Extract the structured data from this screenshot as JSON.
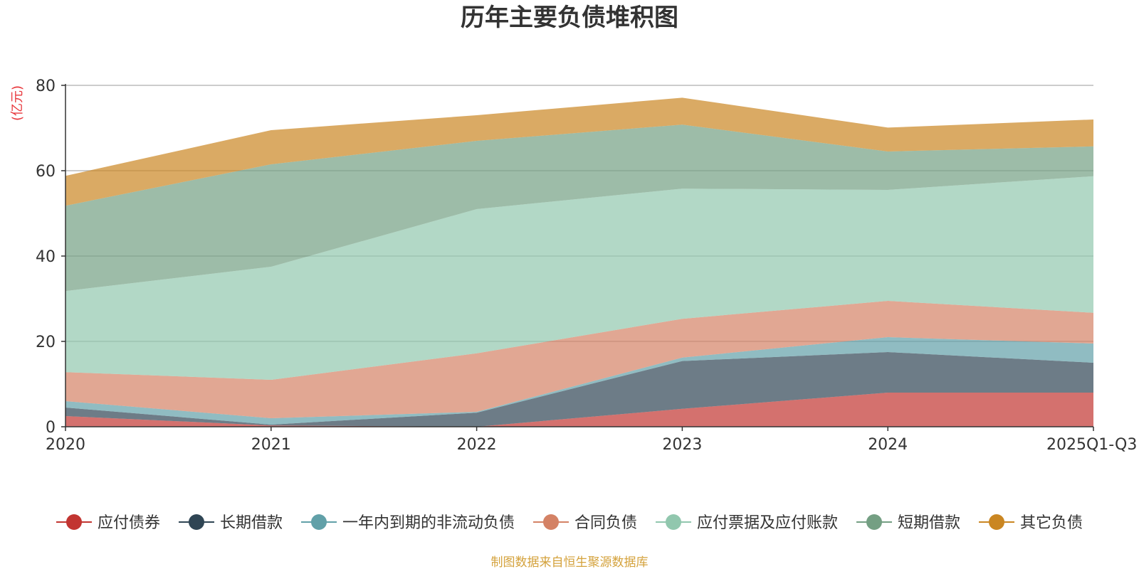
{
  "chart_data": {
    "type": "area",
    "stacked": true,
    "title": "历年主要负债堆积图",
    "ylabel": "(亿元)",
    "ylim": [
      0,
      80
    ],
    "yticks": [
      "0",
      "20",
      "40",
      "60",
      "80"
    ],
    "categories": [
      "2020",
      "2021",
      "2022",
      "2023",
      "2024",
      "2025Q1-Q3"
    ],
    "series": [
      {
        "name": "应付债券",
        "color": "#c23531",
        "values": [
          2.5,
          0.3,
          0,
          4.2,
          8.0,
          8.0
        ]
      },
      {
        "name": "长期借款",
        "color": "#2f4554",
        "values": [
          2.0,
          0.2,
          3.3,
          11.2,
          9.5,
          7.0
        ]
      },
      {
        "name": "一年内到期的非流动负债",
        "color": "#61a0a8",
        "values": [
          1.5,
          1.5,
          0.2,
          0.8,
          3.5,
          4.5
        ]
      },
      {
        "name": "合同负债",
        "color": "#d48265",
        "values": [
          6.8,
          9.0,
          13.7,
          9.1,
          8.5,
          7.2
        ]
      },
      {
        "name": "应付票据及应付账款",
        "color": "#91c7ae",
        "values": [
          19.0,
          26.5,
          33.8,
          30.5,
          26.0,
          32.0
        ]
      },
      {
        "name": "短期借款",
        "color": "#749f83",
        "values": [
          20.0,
          24.0,
          16.0,
          15.0,
          9.0,
          7.0
        ]
      },
      {
        "name": "其它负债",
        "color": "#ca8622",
        "values": [
          7.0,
          8.0,
          6.0,
          6.3,
          5.6,
          6.3
        ]
      }
    ]
  },
  "source_text": "制图数据来自恒生聚源数据库",
  "colors": {
    "unit_label": "#e8383d",
    "source_text": "#d4a23c",
    "axis": "#333333",
    "grid": "#bbbbbb"
  }
}
